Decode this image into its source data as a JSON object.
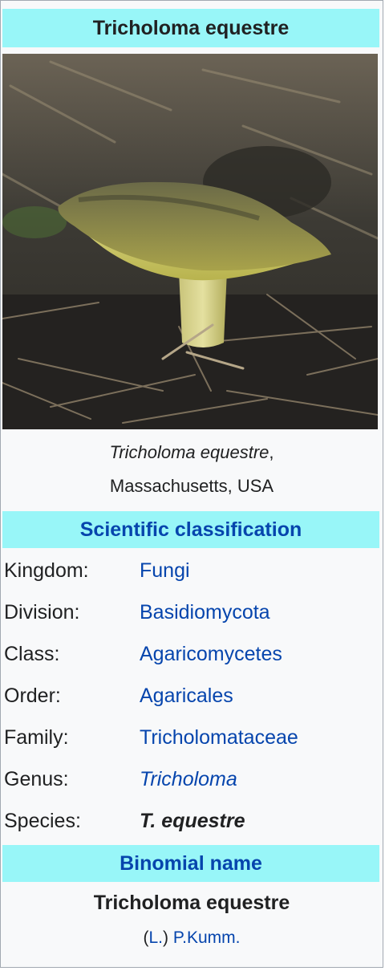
{
  "title": "Tricholoma equestre",
  "image": {
    "caption_italic": "Tricholoma equestre",
    "caption_suffix": ",",
    "caption_line2": "Massachusetts, USA"
  },
  "classification": {
    "header": "Scientific classification",
    "rows": [
      {
        "label": "Kingdom:",
        "value": "Fungi"
      },
      {
        "label": "Division:",
        "value": "Basidiomycota"
      },
      {
        "label": "Class:",
        "value": "Agaricomycetes"
      },
      {
        "label": "Order:",
        "value": "Agaricales"
      },
      {
        "label": "Family:",
        "value": "Tricholomataceae"
      },
      {
        "label": "Genus:",
        "value": "Tricholoma"
      },
      {
        "label": "Species:",
        "value": "T. equestre"
      }
    ]
  },
  "binomial": {
    "header": "Binomial name",
    "name": "Tricholoma equestre",
    "open_paren": "(",
    "author1": "L.",
    "close_paren": ")",
    "author2": "P.Kumm."
  },
  "colors": {
    "header_bg": "#98f6f8",
    "link": "#0645ad",
    "box_bg": "#f8f9fa"
  }
}
